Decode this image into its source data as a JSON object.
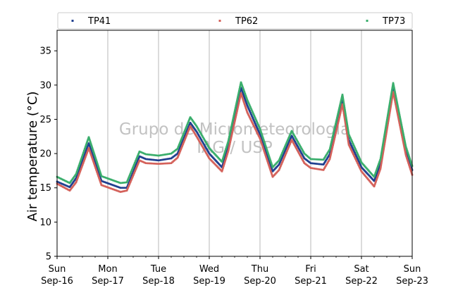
{
  "chart_data": {
    "type": "scatter",
    "ylabel": "Air temperature (°C)",
    "xlabel": "",
    "ylim": [
      5,
      38
    ],
    "xlim": [
      "2018-09-16 00:00",
      "2018-09-23 00:00"
    ],
    "yticks": [
      5,
      10,
      15,
      20,
      25,
      30,
      35
    ],
    "xticks": [
      {
        "x": "2018-09-16",
        "line1": "Sun",
        "line2": "Sep-16"
      },
      {
        "x": "2018-09-17",
        "line1": "Mon",
        "line2": "Sep-17"
      },
      {
        "x": "2018-09-18",
        "line1": "Tue",
        "line2": "Sep-18"
      },
      {
        "x": "2018-09-19",
        "line1": "Wed",
        "line2": "Sep-19"
      },
      {
        "x": "2018-09-20",
        "line1": "Thu",
        "line2": "Sep-20"
      },
      {
        "x": "2018-09-21",
        "line1": "Fri",
        "line2": "Sep-21"
      },
      {
        "x": "2018-09-22",
        "line1": "Sat",
        "line2": "Sep-22"
      },
      {
        "x": "2018-09-23",
        "line1": "Sun",
        "line2": "Sep-23"
      }
    ],
    "grid": "vertical-major",
    "legend_position": "top",
    "watermark": [
      "Grupo de Micrometeorologia",
      "IAG / USP"
    ],
    "series": [
      {
        "name": "TP41",
        "color": "#1f3f8f",
        "x": [
          "2018-09-16 00:00",
          "2018-09-16 06:00",
          "2018-09-16 09:00",
          "2018-09-16 15:00",
          "2018-09-16 21:00",
          "2018-09-17 06:00",
          "2018-09-17 09:00",
          "2018-09-17 15:00",
          "2018-09-17 18:00",
          "2018-09-18 00:00",
          "2018-09-18 06:00",
          "2018-09-18 09:00",
          "2018-09-18 15:00",
          "2018-09-18 18:00",
          "2018-09-19 00:00",
          "2018-09-19 06:00",
          "2018-09-19 09:00",
          "2018-09-19 15:00",
          "2018-09-19 18:00",
          "2018-09-20 00:00",
          "2018-09-20 06:00",
          "2018-09-20 09:00",
          "2018-09-20 15:00",
          "2018-09-20 21:00",
          "2018-09-21 00:00",
          "2018-09-21 06:00",
          "2018-09-21 09:00",
          "2018-09-21 15:00",
          "2018-09-21 18:00",
          "2018-09-22 00:00",
          "2018-09-22 06:00",
          "2018-09-22 09:00",
          "2018-09-22 15:00",
          "2018-09-22 21:00",
          "2018-09-23 00:00"
        ],
        "y": [
          15.9,
          15.1,
          16.4,
          21.5,
          16.0,
          15.0,
          15.0,
          19.6,
          19.2,
          19.0,
          19.3,
          20.0,
          24.5,
          23.2,
          20.0,
          18.0,
          21.0,
          29.6,
          27.0,
          22.8,
          17.4,
          18.4,
          22.6,
          19.3,
          18.6,
          18.4,
          19.9,
          27.8,
          22.0,
          18.0,
          16.0,
          18.5,
          29.6,
          20.4,
          17.6
        ]
      },
      {
        "name": "TP62",
        "color": "#d4615a",
        "x": [
          "2018-09-16 00:00",
          "2018-09-16 06:00",
          "2018-09-16 09:00",
          "2018-09-16 15:00",
          "2018-09-16 21:00",
          "2018-09-17 06:00",
          "2018-09-17 09:00",
          "2018-09-17 15:00",
          "2018-09-17 18:00",
          "2018-09-18 00:00",
          "2018-09-18 06:00",
          "2018-09-18 09:00",
          "2018-09-18 15:00",
          "2018-09-18 18:00",
          "2018-09-19 00:00",
          "2018-09-19 06:00",
          "2018-09-19 09:00",
          "2018-09-19 15:00",
          "2018-09-19 18:00",
          "2018-09-20 00:00",
          "2018-09-20 06:00",
          "2018-09-20 09:00",
          "2018-09-20 15:00",
          "2018-09-20 21:00",
          "2018-09-21 00:00",
          "2018-09-21 06:00",
          "2018-09-21 09:00",
          "2018-09-21 15:00",
          "2018-09-21 18:00",
          "2018-09-22 00:00",
          "2018-09-22 06:00",
          "2018-09-22 09:00",
          "2018-09-22 15:00",
          "2018-09-22 21:00",
          "2018-09-23 00:00"
        ],
        "y": [
          15.6,
          14.6,
          15.8,
          20.8,
          15.4,
          14.4,
          14.6,
          19.0,
          18.6,
          18.5,
          18.6,
          19.4,
          24.0,
          22.5,
          19.3,
          17.4,
          20.4,
          28.8,
          26.0,
          22.2,
          16.6,
          17.6,
          22.0,
          18.6,
          17.9,
          17.6,
          19.2,
          27.2,
          21.3,
          17.4,
          15.2,
          17.8,
          29.0,
          19.8,
          16.9
        ]
      },
      {
        "name": "TP73",
        "color": "#3aae6c",
        "x": [
          "2018-09-16 00:00",
          "2018-09-16 06:00",
          "2018-09-16 09:00",
          "2018-09-16 15:00",
          "2018-09-16 21:00",
          "2018-09-17 06:00",
          "2018-09-17 09:00",
          "2018-09-17 15:00",
          "2018-09-17 18:00",
          "2018-09-18 00:00",
          "2018-09-18 06:00",
          "2018-09-18 09:00",
          "2018-09-18 15:00",
          "2018-09-18 18:00",
          "2018-09-19 00:00",
          "2018-09-19 06:00",
          "2018-09-19 09:00",
          "2018-09-19 15:00",
          "2018-09-19 18:00",
          "2018-09-20 00:00",
          "2018-09-20 06:00",
          "2018-09-20 09:00",
          "2018-09-20 15:00",
          "2018-09-20 21:00",
          "2018-09-21 00:00",
          "2018-09-21 06:00",
          "2018-09-21 09:00",
          "2018-09-21 15:00",
          "2018-09-21 18:00",
          "2018-09-22 00:00",
          "2018-09-22 06:00",
          "2018-09-22 09:00",
          "2018-09-22 15:00",
          "2018-09-22 21:00",
          "2018-09-23 00:00"
        ],
        "y": [
          16.6,
          15.7,
          17.0,
          22.4,
          16.7,
          15.7,
          15.8,
          20.3,
          19.9,
          19.7,
          20.0,
          20.7,
          25.3,
          24.0,
          20.8,
          18.8,
          21.8,
          30.4,
          27.8,
          23.6,
          18.0,
          19.0,
          23.3,
          20.0,
          19.2,
          19.1,
          20.6,
          28.6,
          22.8,
          18.7,
          16.6,
          19.2,
          30.3,
          21.0,
          18.2
        ]
      }
    ]
  }
}
